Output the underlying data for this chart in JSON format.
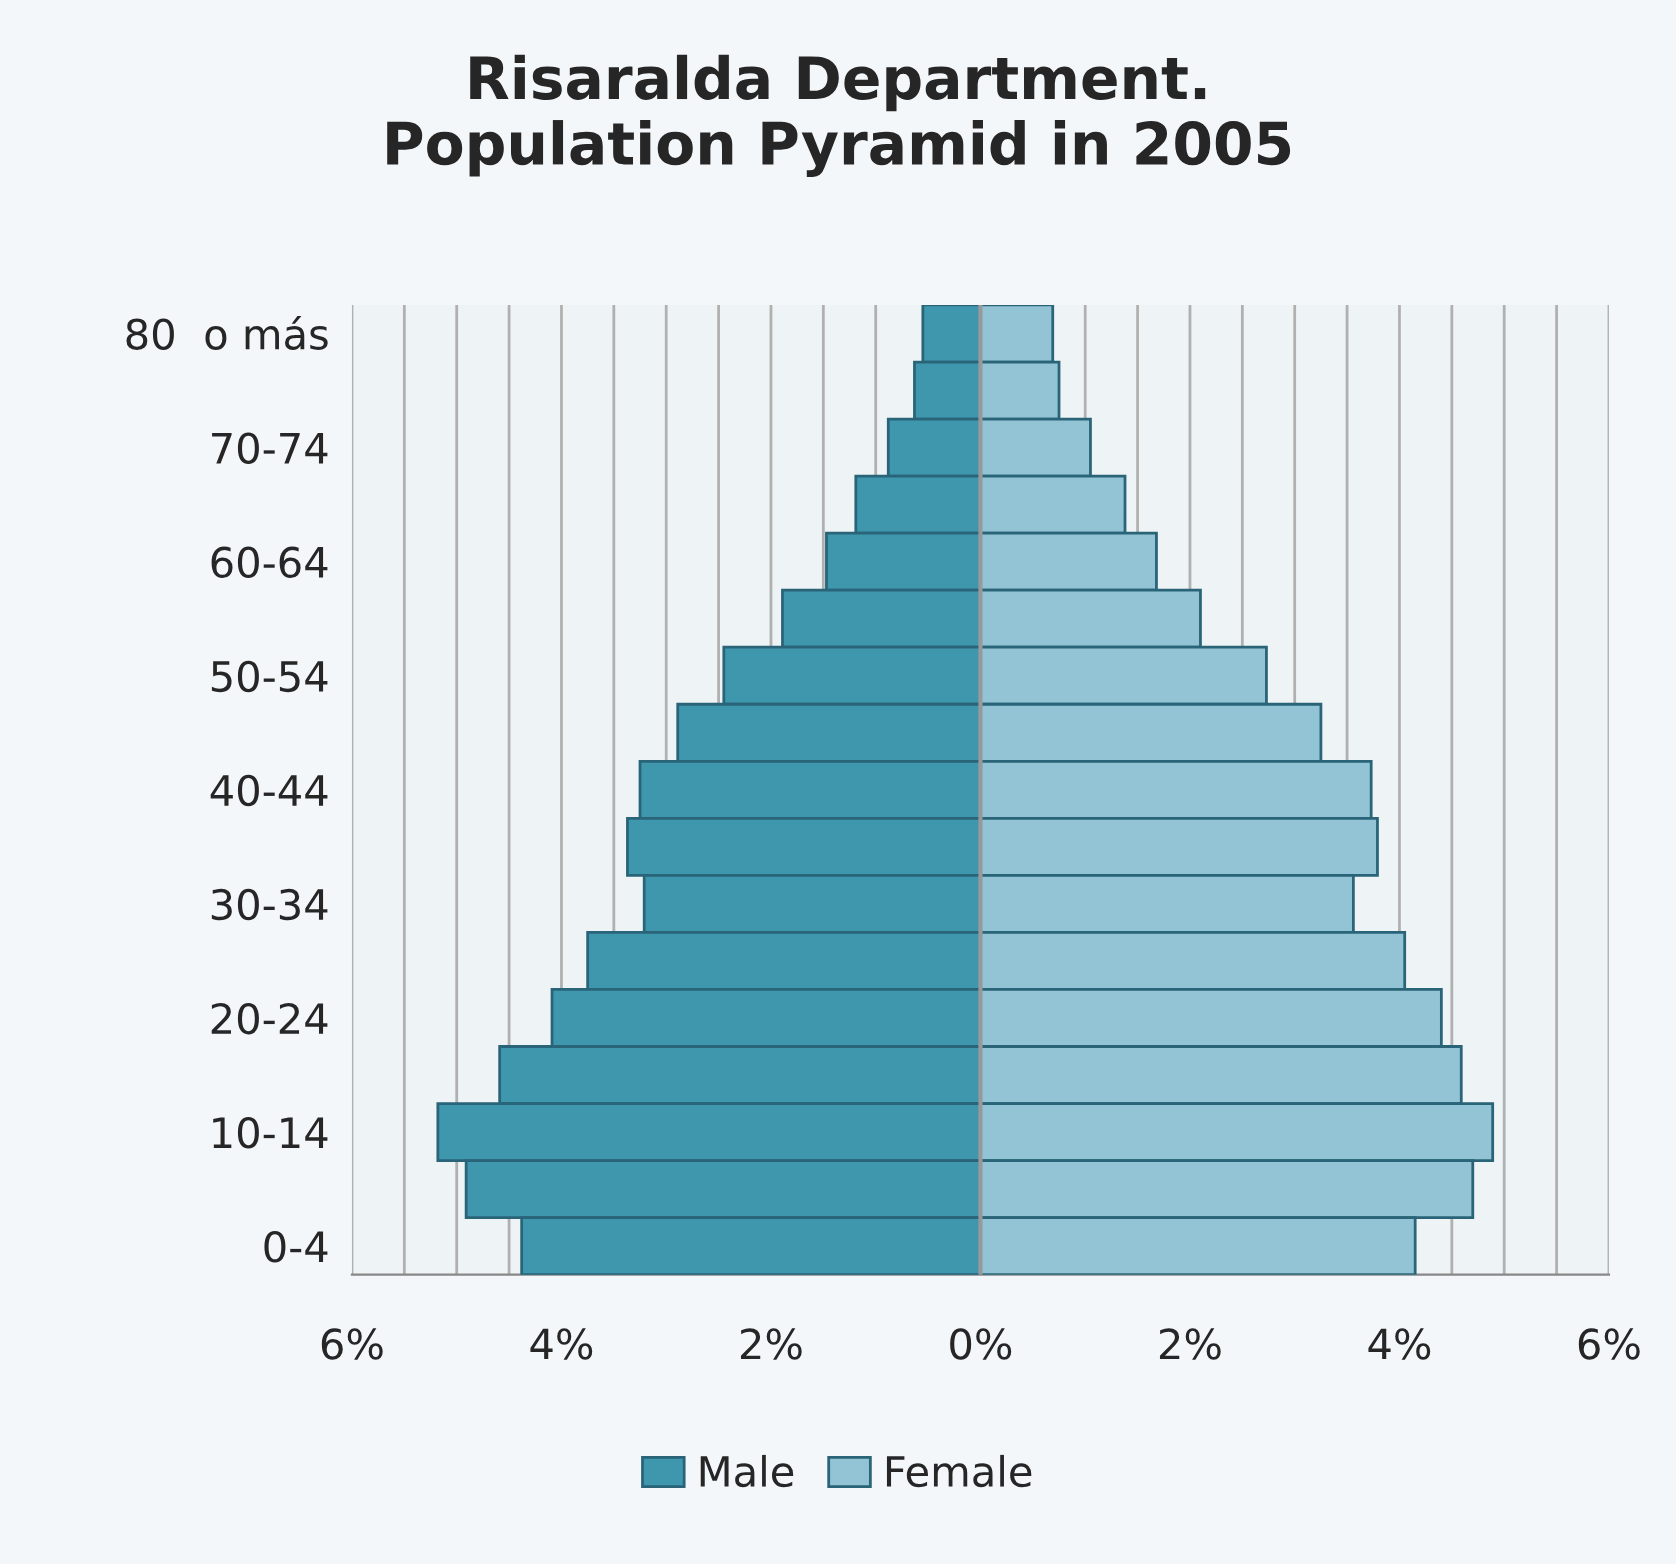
{
  "chart_data": {
    "type": "bar",
    "orientation": "horizontal",
    "title": "Risaralda Department.\nPopulation Pyramid in 2005",
    "categories": [
      "80  o más",
      null,
      "70-74",
      null,
      "60-64",
      null,
      "50-54",
      null,
      "40-44",
      null,
      "30-34",
      null,
      "20-24",
      null,
      "10-14",
      null,
      "0-4"
    ],
    "series": [
      {
        "name": "Male",
        "color": "#3f97ae",
        "values": [
          -0.55,
          -0.63,
          -0.88,
          -1.19,
          -1.47,
          -1.89,
          -2.45,
          -2.89,
          -3.25,
          -3.37,
          -3.21,
          -3.75,
          -4.09,
          -4.59,
          -5.18,
          -4.91,
          -4.38
        ]
      },
      {
        "name": "Female",
        "color": "#92c4d5",
        "values": [
          0.69,
          0.75,
          1.05,
          1.38,
          1.68,
          2.1,
          2.73,
          3.25,
          3.73,
          3.79,
          3.56,
          4.05,
          4.4,
          4.59,
          4.89,
          4.7,
          4.15
        ]
      }
    ],
    "xlim": [
      -6,
      6
    ],
    "xticks": [
      {
        "value": -6,
        "label": "6%"
      },
      {
        "value": -5.5,
        "label": null
      },
      {
        "value": -5,
        "label": null
      },
      {
        "value": -4.5,
        "label": null
      },
      {
        "value": -4,
        "label": "4%"
      },
      {
        "value": -3.5,
        "label": null
      },
      {
        "value": -3,
        "label": null
      },
      {
        "value": -2.5,
        "label": null
      },
      {
        "value": -2,
        "label": "2%"
      },
      {
        "value": -1.5,
        "label": null
      },
      {
        "value": -1,
        "label": null
      },
      {
        "value": 0,
        "label": "0%"
      },
      {
        "value": 1,
        "label": null
      },
      {
        "value": 1.5,
        "label": null
      },
      {
        "value": 2,
        "label": "2%"
      },
      {
        "value": 2.5,
        "label": null
      },
      {
        "value": 3,
        "label": null
      },
      {
        "value": 3.5,
        "label": null
      },
      {
        "value": 4,
        "label": "4%"
      },
      {
        "value": 4.5,
        "label": null
      },
      {
        "value": 5,
        "label": null
      },
      {
        "value": 5.5,
        "label": null
      },
      {
        "value": 6,
        "label": "6%"
      }
    ],
    "stacked": true,
    "grid": "x",
    "legend": "bottom"
  }
}
